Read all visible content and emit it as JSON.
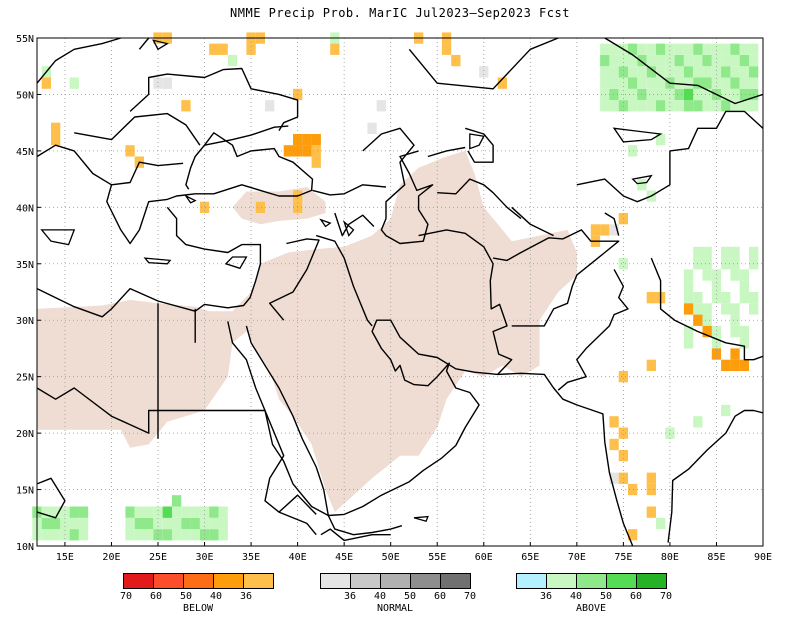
{
  "title": "NMME Precip Prob. MarIC  Jul2023—Sep2023 Fcst",
  "map": {
    "lon_range": [
      12,
      90
    ],
    "lat_range": [
      10,
      55
    ],
    "lon_labels": [
      "15E",
      "20E",
      "25E",
      "30E",
      "35E",
      "40E",
      "45E",
      "50E",
      "55E",
      "60E",
      "65E",
      "70E",
      "75E",
      "80E",
      "85E",
      "90E"
    ],
    "lat_labels": [
      "55N",
      "50N",
      "45N",
      "40N",
      "35N",
      "30N",
      "25N",
      "20N",
      "15N",
      "10N"
    ],
    "dry_region_color": "#efdcd2",
    "coast_color": "#000000",
    "grid_color": "#999999"
  },
  "legend": {
    "below": {
      "label": "BELOW",
      "colors": [
        "#e31a1c",
        "#fc4e2a",
        "#fd6d15",
        "#fd9d0c",
        "#fec04a"
      ],
      "ticks": [
        "70",
        "60",
        "50",
        "40",
        "36"
      ]
    },
    "normal": {
      "label": "NORMAL",
      "colors": [
        "#e5e5e5",
        "#c8c8c8",
        "#b0b0b0",
        "#8e8e8e",
        "#707070"
      ],
      "ticks": [
        "36",
        "40",
        "50",
        "60",
        "70"
      ]
    },
    "above": {
      "label": "ABOVE",
      "colors": [
        "#b4f0ff",
        "#c9f7c2",
        "#8fe88a",
        "#55dc55",
        "#25b225"
      ],
      "ticks": [
        "36",
        "40",
        "50",
        "60",
        "70"
      ]
    }
  }
}
